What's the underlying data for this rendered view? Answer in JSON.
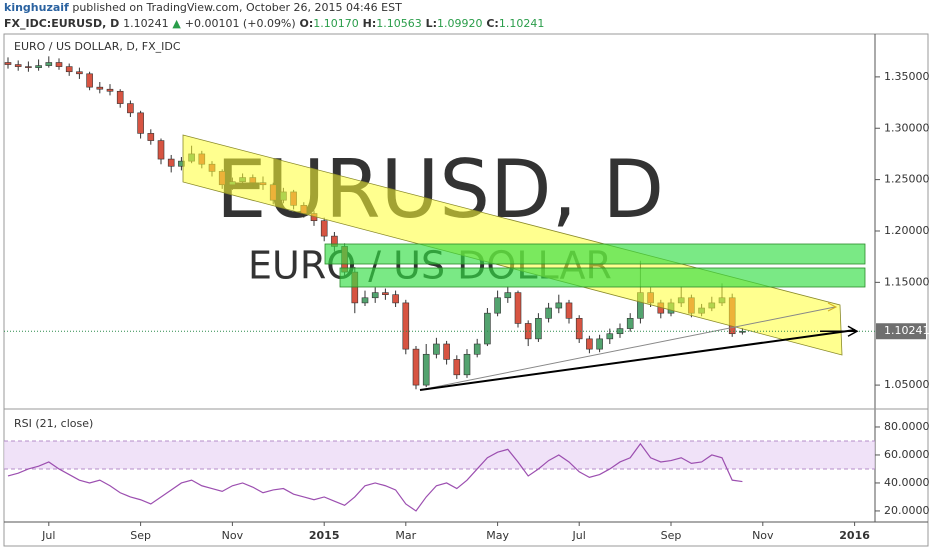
{
  "header": {
    "author": "kinghuzaif",
    "published": "published on TradingView.com, October 26, 2015 04:46 EST",
    "symbol": "FX_IDC:EURUSD, D",
    "price": "1.10241",
    "arrow": "▲",
    "change": "+0.00101 (+0.09%)",
    "ohlc": [
      [
        "O:",
        "1.10170"
      ],
      [
        "H:",
        "1.10563"
      ],
      [
        "L:",
        "1.09920"
      ],
      [
        "C:",
        "1.10241"
      ]
    ]
  },
  "chart_data": [
    {
      "type": "candlestick",
      "title": "EURO / US DOLLAR, D, FX_IDC",
      "watermark": "EURUSD, D",
      "watermark_sub": "EURO / US DOLLAR",
      "up_color": "#53a36f",
      "down_color": "#d75442",
      "categories": [
        null,
        null,
        null,
        null,
        "Jul",
        null,
        null,
        null,
        null,
        null,
        null,
        null,
        null,
        "Sep",
        null,
        null,
        null,
        null,
        null,
        null,
        null,
        null,
        "Nov",
        null,
        null,
        null,
        null,
        null,
        null,
        null,
        null,
        "2015",
        null,
        null,
        null,
        null,
        null,
        null,
        null,
        "Mar",
        null,
        null,
        null,
        null,
        null,
        null,
        null,
        null,
        "May",
        null,
        null,
        null,
        null,
        null,
        null,
        null,
        "Jul",
        null,
        null,
        null,
        null,
        null,
        null,
        null,
        null,
        "Sep",
        null,
        null,
        null,
        null,
        null,
        null,
        null,
        null,
        "Nov",
        null,
        null,
        null,
        null,
        null,
        null,
        null,
        null,
        "2016",
        null,
        null
      ],
      "ohlc": [
        [
          1.364,
          1.369,
          1.358,
          1.362
        ],
        [
          1.362,
          1.366,
          1.356,
          1.36
        ],
        [
          1.36,
          1.365,
          1.355,
          1.359
        ],
        [
          1.359,
          1.367,
          1.356,
          1.361
        ],
        [
          1.361,
          1.37,
          1.359,
          1.364
        ],
        [
          1.364,
          1.368,
          1.357,
          1.36
        ],
        [
          1.36,
          1.363,
          1.351,
          1.355
        ],
        [
          1.355,
          1.359,
          1.348,
          1.353
        ],
        [
          1.353,
          1.355,
          1.337,
          1.34
        ],
        [
          1.34,
          1.345,
          1.334,
          1.338
        ],
        [
          1.338,
          1.343,
          1.332,
          1.336
        ],
        [
          1.336,
          1.338,
          1.32,
          1.324
        ],
        [
          1.324,
          1.327,
          1.311,
          1.315
        ],
        [
          1.315,
          1.317,
          1.29,
          1.295
        ],
        [
          1.295,
          1.299,
          1.284,
          1.288
        ],
        [
          1.288,
          1.29,
          1.265,
          1.27
        ],
        [
          1.27,
          1.274,
          1.257,
          1.263
        ],
        [
          1.263,
          1.272,
          1.259,
          1.268
        ],
        [
          1.268,
          1.283,
          1.266,
          1.275
        ],
        [
          1.275,
          1.278,
          1.261,
          1.265
        ],
        [
          1.265,
          1.268,
          1.253,
          1.258
        ],
        [
          1.258,
          1.26,
          1.241,
          1.245
        ],
        [
          1.245,
          1.252,
          1.24,
          1.248
        ],
        [
          1.248,
          1.256,
          1.244,
          1.252
        ],
        [
          1.252,
          1.255,
          1.242,
          1.247
        ],
        [
          1.247,
          1.253,
          1.24,
          1.245
        ],
        [
          1.245,
          1.247,
          1.226,
          1.23
        ],
        [
          1.23,
          1.242,
          1.227,
          1.238
        ],
        [
          1.238,
          1.24,
          1.221,
          1.225
        ],
        [
          1.225,
          1.228,
          1.213,
          1.217
        ],
        [
          1.217,
          1.22,
          1.205,
          1.21
        ],
        [
          1.21,
          1.213,
          1.19,
          1.195
        ],
        [
          1.195,
          1.199,
          1.18,
          1.185
        ],
        [
          1.185,
          1.188,
          1.155,
          1.16
        ],
        [
          1.16,
          1.165,
          1.12,
          1.13
        ],
        [
          1.13,
          1.142,
          1.127,
          1.135
        ],
        [
          1.135,
          1.145,
          1.13,
          1.14
        ],
        [
          1.14,
          1.144,
          1.133,
          1.138
        ],
        [
          1.138,
          1.142,
          1.126,
          1.13
        ],
        [
          1.13,
          1.133,
          1.08,
          1.085
        ],
        [
          1.085,
          1.088,
          1.046,
          1.05
        ],
        [
          1.05,
          1.09,
          1.048,
          1.08
        ],
        [
          1.08,
          1.096,
          1.076,
          1.09
        ],
        [
          1.09,
          1.093,
          1.07,
          1.075
        ],
        [
          1.075,
          1.079,
          1.056,
          1.06
        ],
        [
          1.06,
          1.085,
          1.057,
          1.08
        ],
        [
          1.08,
          1.095,
          1.077,
          1.09
        ],
        [
          1.09,
          1.125,
          1.088,
          1.12
        ],
        [
          1.12,
          1.142,
          1.117,
          1.135
        ],
        [
          1.135,
          1.146,
          1.13,
          1.14
        ],
        [
          1.14,
          1.142,
          1.106,
          1.11
        ],
        [
          1.11,
          1.113,
          1.088,
          1.095
        ],
        [
          1.095,
          1.12,
          1.092,
          1.115
        ],
        [
          1.115,
          1.13,
          1.111,
          1.125
        ],
        [
          1.125,
          1.138,
          1.12,
          1.13
        ],
        [
          1.13,
          1.133,
          1.11,
          1.115
        ],
        [
          1.115,
          1.118,
          1.091,
          1.095
        ],
        [
          1.095,
          1.098,
          1.081,
          1.085
        ],
        [
          1.085,
          1.099,
          1.082,
          1.095
        ],
        [
          1.095,
          1.105,
          1.09,
          1.1
        ],
        [
          1.1,
          1.11,
          1.096,
          1.105
        ],
        [
          1.105,
          1.12,
          1.102,
          1.115
        ],
        [
          1.115,
          1.171,
          1.11,
          1.14
        ],
        [
          1.14,
          1.145,
          1.126,
          1.13
        ],
        [
          1.13,
          1.133,
          1.115,
          1.12
        ],
        [
          1.12,
          1.134,
          1.117,
          1.13
        ],
        [
          1.13,
          1.146,
          1.126,
          1.135
        ],
        [
          1.135,
          1.138,
          1.116,
          1.12
        ],
        [
          1.12,
          1.129,
          1.117,
          1.125
        ],
        [
          1.125,
          1.136,
          1.122,
          1.13
        ],
        [
          1.13,
          1.149,
          1.127,
          1.135
        ],
        [
          1.135,
          1.139,
          1.097,
          1.1
        ],
        [
          1.1017,
          1.1056,
          1.0992,
          1.1024
        ],
        null,
        null,
        null,
        null,
        null,
        null,
        null,
        null,
        null,
        null,
        null,
        null,
        null
      ],
      "ylim": [
        1.0277,
        1.3859
      ],
      "yticks": [
        {
          "value": 1.05,
          "label": "1.05000"
        },
        {
          "value": 1.15,
          "label": "1.15000"
        },
        {
          "value": 1.2,
          "label": "1.20000"
        },
        {
          "value": 1.25,
          "label": "1.25000"
        },
        {
          "value": 1.3,
          "label": "1.30000"
        },
        {
          "value": 1.35,
          "label": "1.35000"
        }
      ],
      "last_price": {
        "value": 1.10241,
        "label": "1.10241"
      }
    },
    {
      "type": "line",
      "title": "RSI (21, close)",
      "color": "#9c4fb0",
      "band": [
        50,
        70
      ],
      "values": [
        45,
        47,
        50,
        52,
        55,
        50,
        46,
        42,
        40,
        42,
        38,
        33,
        30,
        28,
        25,
        30,
        35,
        40,
        42,
        38,
        36,
        34,
        38,
        40,
        37,
        33,
        35,
        36,
        32,
        30,
        28,
        30,
        27,
        24,
        30,
        38,
        40,
        38,
        35,
        25,
        20,
        30,
        38,
        40,
        36,
        42,
        50,
        58,
        62,
        64,
        55,
        45,
        50,
        56,
        60,
        55,
        48,
        44,
        46,
        50,
        55,
        58,
        68,
        58,
        55,
        56,
        58,
        54,
        55,
        60,
        58,
        42,
        41,
        null,
        null,
        null,
        null,
        null,
        null,
        null,
        null,
        null,
        null,
        null,
        null,
        null
      ],
      "ylim": [
        12.1,
        90.7
      ],
      "yticks": [
        {
          "value": 20,
          "label": "20.0000"
        },
        {
          "value": 40,
          "label": "40.0000"
        },
        {
          "value": 60,
          "label": "60.0000"
        },
        {
          "value": 80,
          "label": "80.0000"
        }
      ]
    }
  ]
}
